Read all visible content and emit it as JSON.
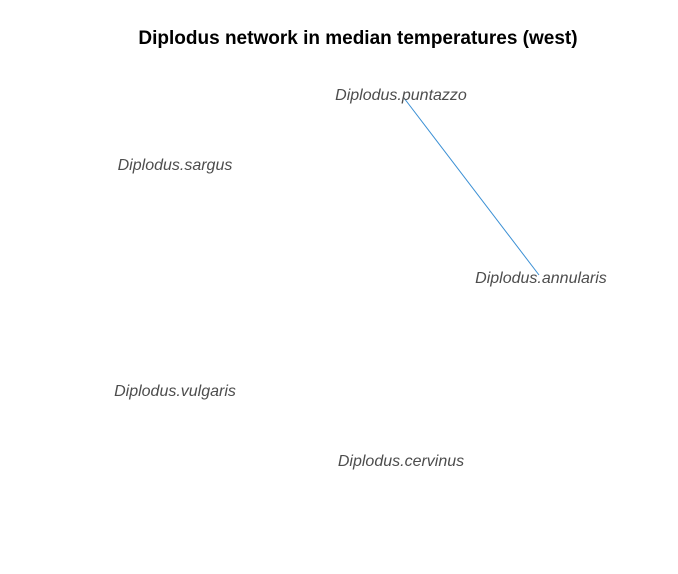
{
  "title": "Diplodus network in median temperatures (west)",
  "nodes": [
    {
      "id": "puntazzo",
      "label": "Diplodus.puntazzo"
    },
    {
      "id": "sargus",
      "label": "Diplodus.sargus"
    },
    {
      "id": "annularis",
      "label": "Diplodus.annularis"
    },
    {
      "id": "vulgaris",
      "label": "Diplodus.vulgaris"
    },
    {
      "id": "cervinus",
      "label": "Diplodus.cervinus"
    }
  ],
  "edges": [
    {
      "source": "puntazzo",
      "target": "annularis",
      "color": "#3a8fd4"
    }
  ]
}
